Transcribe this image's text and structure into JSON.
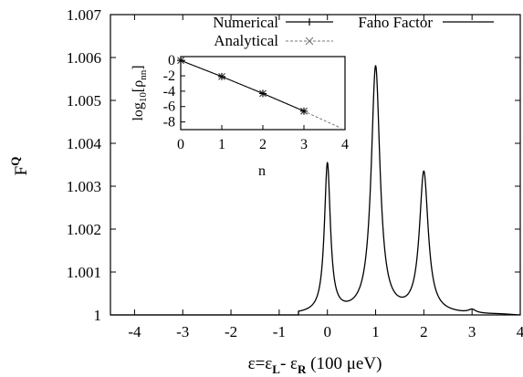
{
  "chart_data": [
    {
      "type": "line",
      "xlabel": {
        "main": "ε=ε",
        "sub1": "L",
        "mid": "- ε",
        "sub2": "R",
        "tail": " (100 μeV)"
      },
      "ylabel": {
        "main": "F",
        "sup": "Q"
      },
      "xlim": [
        -4.5,
        4
      ],
      "ylim": [
        1.0,
        1.007
      ],
      "x_ticks": [
        -4,
        -3,
        -2,
        -1,
        0,
        1,
        2,
        3,
        4
      ],
      "x_tick_labels": [
        "-4",
        "-3",
        "-2",
        "-1",
        "0",
        "1",
        "2",
        "3",
        "4"
      ],
      "y_ticks": [
        1.0,
        1.001,
        1.002,
        1.003,
        1.004,
        1.005,
        1.006,
        1.007
      ],
      "y_tick_labels": [
        "1",
        "1.001",
        "1.002",
        "1.003",
        "1.004",
        "1.005",
        "1.006",
        "1.007"
      ],
      "grid": false,
      "legend": {
        "placement": "top-right",
        "label": "Fano Factor"
      },
      "series": [
        {
          "name": "Fano Factor",
          "color": "#000000",
          "peaks": [
            {
              "center": 0,
              "height": 0.00347,
              "width": 0.075
            },
            {
              "center": 1,
              "height": 0.00575,
              "width": 0.11
            },
            {
              "center": 2,
              "height": 0.00328,
              "width": 0.11
            },
            {
              "center": 3,
              "height": 8e-05,
              "width": 0.09
            }
          ],
          "baseline": 1.0
        }
      ]
    },
    {
      "type": "line",
      "xlabel": "n",
      "ylabel": {
        "pre": "log",
        "sub": "10",
        "mid": "[ρ",
        "sub2": "nn",
        "post": "]"
      },
      "xlim": [
        0,
        4
      ],
      "ylim": [
        -9,
        0.5
      ],
      "x_ticks": [
        0,
        1,
        2,
        3,
        4
      ],
      "x_tick_labels": [
        "0",
        "1",
        "2",
        "3",
        "4"
      ],
      "y_ticks": [
        0,
        -2,
        -4,
        -6,
        -8
      ],
      "y_tick_labels": [
        "0",
        "-2",
        "-4",
        "-6",
        "-8"
      ],
      "legend": {
        "placement": "top"
      },
      "series": [
        {
          "name": "Numerical",
          "x": [
            0,
            1,
            2,
            3
          ],
          "y": [
            0,
            -2.1,
            -4.3,
            -6.6
          ],
          "marker": "+",
          "line": "solid",
          "color": "#000000"
        },
        {
          "name": "Analytical",
          "x": [
            0,
            1,
            2,
            3,
            3.9
          ],
          "y": [
            0,
            -2.1,
            -4.3,
            -6.6,
            -8.8
          ],
          "marker": "x",
          "line": "dashed",
          "color": "#777777"
        }
      ]
    }
  ]
}
